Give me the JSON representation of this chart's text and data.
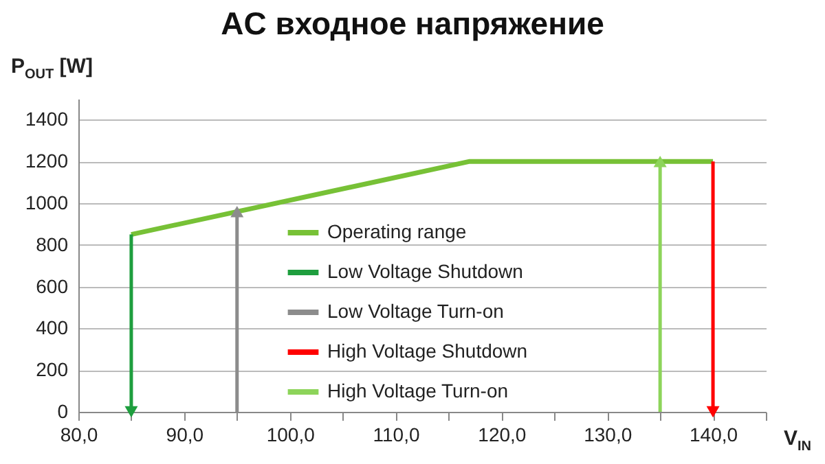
{
  "chart_data": {
    "type": "line",
    "title": "AC входное напряжение",
    "xlabel": "V$_{IN}$",
    "ylabel": "P$_{OUT}$ [W]",
    "xlim": [
      80,
      145
    ],
    "xticks": [
      {
        "value": 80,
        "label": "80,0"
      },
      {
        "value": 85,
        "label": null
      },
      {
        "value": 90,
        "label": "90,0"
      },
      {
        "value": 95,
        "label": null
      },
      {
        "value": 100,
        "label": "100,0"
      },
      {
        "value": 105,
        "label": null
      },
      {
        "value": 110,
        "label": "110,0"
      },
      {
        "value": 115,
        "label": null
      },
      {
        "value": 120,
        "label": "120,0"
      },
      {
        "value": 125,
        "label": null
      },
      {
        "value": 130,
        "label": "130,0"
      },
      {
        "value": 135,
        "label": null
      },
      {
        "value": 140,
        "label": "140,0"
      },
      {
        "value": 145,
        "label": null
      }
    ],
    "ylim": [
      0,
      1500
    ],
    "yticks": [
      0,
      200,
      400,
      600,
      800,
      1000,
      1200,
      1400
    ],
    "grid": "y",
    "legend": "center",
    "series": [
      {
        "name": "Operating range",
        "color": "#77c136",
        "x": [
          85,
          117,
          140
        ],
        "values": [
          850,
          1200,
          1200
        ]
      },
      {
        "name": "Low Voltage Shutdown",
        "color": "#1e9e3e",
        "x": [
          85,
          85
        ],
        "values": [
          850,
          0
        ],
        "marker": "triangle"
      },
      {
        "name": "Low Voltage Turn-on",
        "color": "#8c8c8c",
        "x": [
          95,
          95
        ],
        "values": [
          0,
          960
        ],
        "marker": "triangle"
      },
      {
        "name": "High Voltage Shutdown",
        "color": "#ff0000",
        "x": [
          140,
          140
        ],
        "values": [
          1200,
          0
        ],
        "marker": "triangle"
      },
      {
        "name": "High Voltage Turn-on",
        "color": "#8dd45a",
        "x": [
          135,
          135
        ],
        "values": [
          0,
          1200
        ],
        "marker": "triangle"
      }
    ]
  }
}
